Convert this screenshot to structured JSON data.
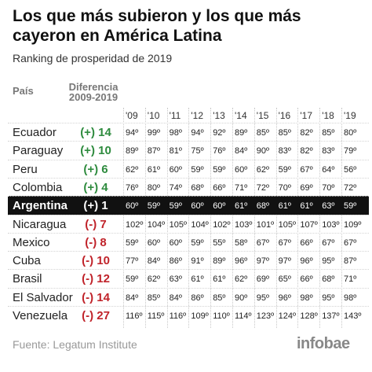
{
  "title": "Los que más subieron y los que más cayeron en América Latina",
  "subtitle": "Ranking de prosperidad de 2019",
  "headers": {
    "pais": "País",
    "diferencia": "Diferencia",
    "period": "2009-2019"
  },
  "source": "Fuente: Legatum Institute",
  "logo": "infobae",
  "colors": {
    "positive": "#2e8b3e",
    "negative": "#c0232a",
    "highlight_bg": "#111111"
  },
  "chart_data": {
    "type": "table",
    "years": [
      "'09",
      "'10",
      "'11",
      "'12",
      "'13",
      "'14",
      "'15",
      "'16",
      "'17",
      "'18",
      "'19"
    ],
    "rows": [
      {
        "country": "Ecuador",
        "diff": "(+) 14",
        "sign": "pos",
        "values": [
          "94º",
          "99º",
          "98º",
          "94º",
          "92º",
          "89º",
          "85º",
          "85º",
          "82º",
          "85º",
          "80º"
        ]
      },
      {
        "country": "Paraguay",
        "diff": "(+) 10",
        "sign": "pos",
        "values": [
          "89º",
          "87º",
          "81º",
          "75º",
          "76º",
          "84º",
          "90º",
          "83º",
          "82º",
          "83º",
          "79º"
        ]
      },
      {
        "country": "Peru",
        "diff": "(+) 6",
        "sign": "pos",
        "values": [
          "62º",
          "61º",
          "60º",
          "59º",
          "59º",
          "60º",
          "62º",
          "59º",
          "67º",
          "64º",
          "56º"
        ]
      },
      {
        "country": "Colombia",
        "diff": "(+) 4",
        "sign": "pos",
        "values": [
          "76º",
          "80º",
          "74º",
          "68º",
          "66º",
          "71º",
          "72º",
          "70º",
          "69º",
          "70º",
          "72º"
        ]
      },
      {
        "country": "Argentina",
        "diff": "(+) 1",
        "sign": "pos",
        "highlight": true,
        "values": [
          "60º",
          "59º",
          "59º",
          "60º",
          "60º",
          "61º",
          "68º",
          "61º",
          "61º",
          "63º",
          "59º"
        ]
      },
      {
        "country": "Nicaragua",
        "diff": "(-) 7",
        "sign": "neg",
        "values": [
          "102º",
          "104º",
          "105º",
          "104º",
          "102º",
          "103º",
          "101º",
          "105º",
          "107º",
          "103º",
          "109º"
        ]
      },
      {
        "country": "Mexico",
        "diff": "(-) 8",
        "sign": "neg",
        "values": [
          "59º",
          "60º",
          "60º",
          "59º",
          "55º",
          "58º",
          "67º",
          "67º",
          "66º",
          "67º",
          "67º"
        ]
      },
      {
        "country": "Cuba",
        "diff": "(-) 10",
        "sign": "neg",
        "values": [
          "77º",
          "84º",
          "86º",
          "91º",
          "89º",
          "96º",
          "97º",
          "97º",
          "96º",
          "95º",
          "87º"
        ]
      },
      {
        "country": "Brasil",
        "diff": "(-) 12",
        "sign": "neg",
        "values": [
          "59º",
          "62º",
          "63º",
          "61º",
          "61º",
          "62º",
          "69º",
          "65º",
          "66º",
          "68º",
          "71º"
        ]
      },
      {
        "country": "El Salvador",
        "diff": "(-) 14",
        "sign": "neg",
        "values": [
          "84º",
          "85º",
          "84º",
          "86º",
          "85º",
          "90º",
          "95º",
          "96º",
          "98º",
          "95º",
          "98º"
        ]
      },
      {
        "country": "Venezuela",
        "diff": "(-) 27",
        "sign": "neg",
        "values": [
          "116º",
          "115º",
          "116º",
          "109º",
          "110º",
          "114º",
          "123º",
          "124º",
          "128º",
          "137º",
          "143º"
        ]
      }
    ]
  }
}
